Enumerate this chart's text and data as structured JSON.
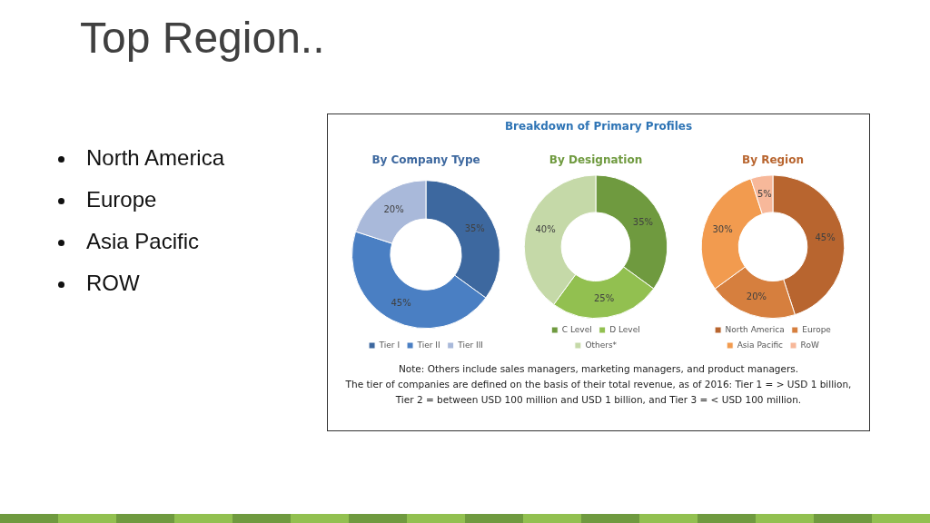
{
  "chart_data": [
    {
      "type": "other",
      "title": "Top Region..",
      "annotations": [
        "North America",
        "Europe",
        "Asia Pacific",
        "ROW"
      ]
    },
    {
      "type": "other",
      "title": "Breakdown of Primary Profiles"
    },
    {
      "type": "donut",
      "title": "By Company Type",
      "categories": [
        "Tier I",
        "Tier II",
        "Tier III"
      ],
      "values": [
        35,
        45,
        20
      ],
      "value_labels": [
        "35%",
        "45%",
        "20%"
      ],
      "colors": [
        "#3d689f",
        "#4a7fc3",
        "#a9b9da"
      ],
      "legend": "bottom"
    },
    {
      "type": "donut",
      "title": "By Designation",
      "categories": [
        "C Level",
        "D Level",
        "Others*"
      ],
      "values": [
        35,
        25,
        40
      ],
      "value_labels": [
        "35%",
        "25%",
        "40%"
      ],
      "colors": [
        "#6f9a3f",
        "#92c050",
        "#c5d9a8"
      ],
      "legend": "bottom"
    },
    {
      "type": "donut",
      "title": "By Region",
      "categories": [
        "North America",
        "Europe",
        "Asia Pacific",
        "RoW"
      ],
      "values": [
        45,
        20,
        30,
        5
      ],
      "value_labels": [
        "45%",
        "20%",
        "30%",
        "5%"
      ],
      "colors": [
        "#b8652f",
        "#d67f3e",
        "#f29b4f",
        "#f7b89a"
      ],
      "legend": "bottom"
    },
    {
      "type": "other",
      "annotations": [
        "Note: Others include sales managers, marketing managers, and product managers.",
        "The tier of companies are defined on the basis of their total revenue, as of 2016: Tier 1 = > USD 1 billion, Tier 2 = between USD 100 million and USD 1 billion, and Tier 3 = < USD 100 million."
      ]
    }
  ]
}
